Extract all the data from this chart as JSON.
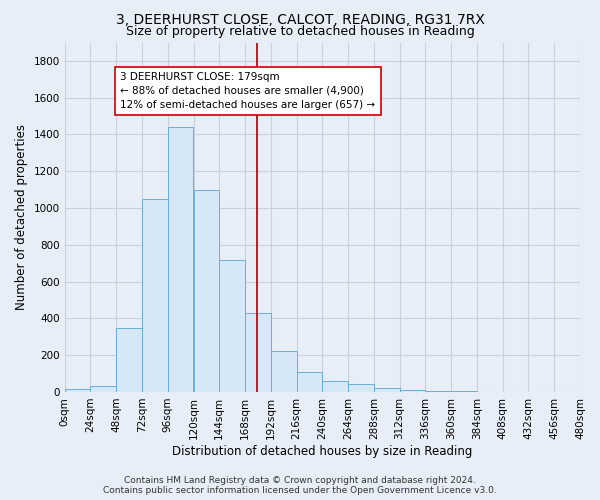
{
  "title": "3, DEERHURST CLOSE, CALCOT, READING, RG31 7RX",
  "subtitle": "Size of property relative to detached houses in Reading",
  "xlabel": "Distribution of detached houses by size in Reading",
  "ylabel": "Number of detached properties",
  "bin_edges": [
    0,
    24,
    48,
    72,
    96,
    120,
    144,
    168,
    192,
    216,
    240,
    264,
    288,
    312,
    336,
    360,
    384,
    408,
    432,
    456,
    480
  ],
  "bar_heights": [
    15,
    35,
    350,
    1050,
    1440,
    1100,
    720,
    430,
    220,
    110,
    60,
    45,
    20,
    10,
    5,
    3,
    2,
    1,
    0,
    0
  ],
  "bar_color": "#d6e8f7",
  "bar_edge_color": "#6aaed6",
  "property_size": 179,
  "vline_color": "#aa0000",
  "annotation_text": "3 DEERHURST CLOSE: 179sqm\n← 88% of detached houses are smaller (4,900)\n12% of semi-detached houses are larger (657) →",
  "annotation_box_color": "#ffffff",
  "annotation_box_edge": "#cc0000",
  "ylim": [
    0,
    1900
  ],
  "yticks": [
    0,
    200,
    400,
    600,
    800,
    1000,
    1200,
    1400,
    1600,
    1800
  ],
  "footer_line1": "Contains HM Land Registry data © Crown copyright and database right 2024.",
  "footer_line2": "Contains public sector information licensed under the Open Government Licence v3.0.",
  "background_color": "#e8eef8",
  "plot_bg_color": "#e8eef8",
  "grid_color": "#c8d0dc",
  "title_fontsize": 10,
  "subtitle_fontsize": 9,
  "axis_label_fontsize": 8.5,
  "tick_fontsize": 7.5,
  "annotation_fontsize": 7.5,
  "footer_fontsize": 6.5
}
